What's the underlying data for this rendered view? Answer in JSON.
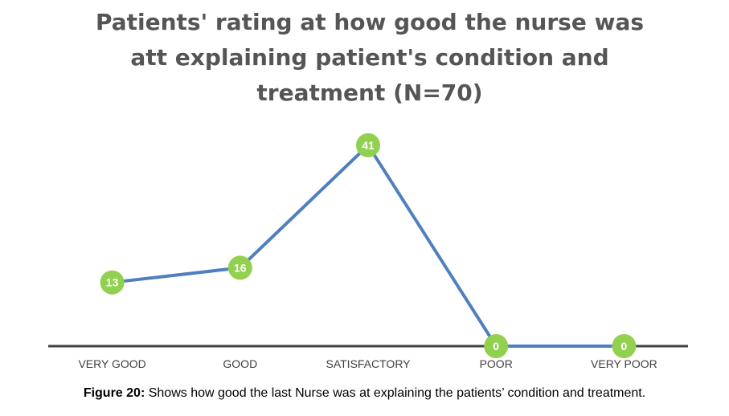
{
  "chart_data": {
    "type": "line",
    "title_lines": [
      "Patients' rating at how good the nurse was",
      "att explaining patient's condition and",
      "treatment (N=70)"
    ],
    "categories": [
      "VERY GOOD",
      "GOOD",
      "SATISFACTORY",
      "POOR",
      "VERY POOR"
    ],
    "series": [
      {
        "values": [
          13,
          16,
          41,
          0,
          0
        ]
      }
    ],
    "data_labels": [
      "13",
      "16",
      "41",
      "0",
      "0"
    ],
    "ylim": [
      0,
      45
    ],
    "grid": false,
    "legend": "none",
    "line_color": "#4F7FBF",
    "marker_color": "#92D050",
    "axis_color": "#404040"
  },
  "caption": {
    "label": "Figure 20:",
    "text": " Shows how good the last Nurse was at explaining the patients’ condition and treatment."
  }
}
